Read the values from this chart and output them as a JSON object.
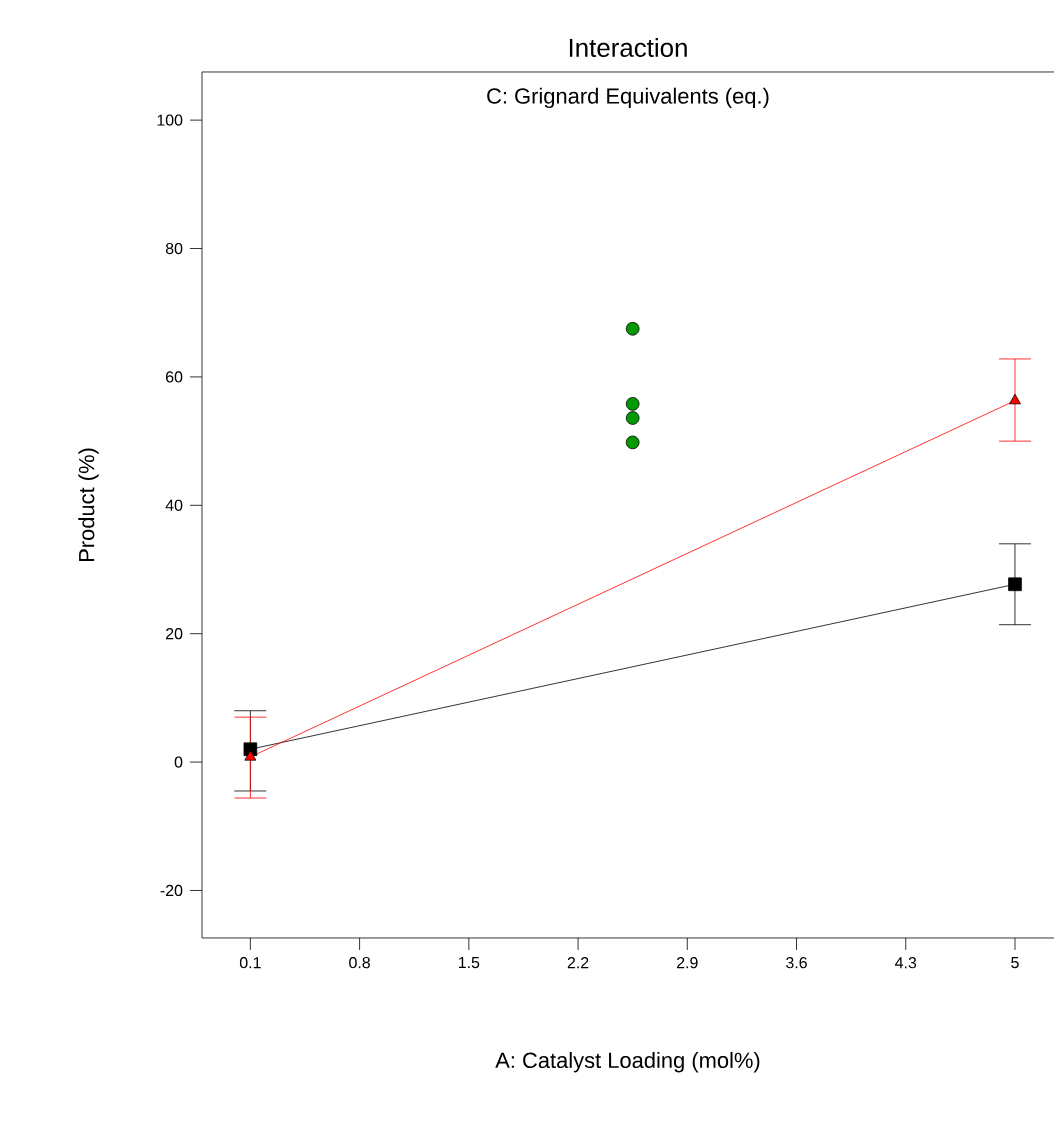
{
  "chart_data": {
    "type": "line",
    "title": "Interaction",
    "subtitle": "C: Grignard Equivalents (eq.)",
    "xlabel": "A: Catalyst Loading (mol%)",
    "ylabel": "Product (%)",
    "xlim": [
      -0.21,
      5.25
    ],
    "ylim": [
      -27.4,
      107.5
    ],
    "xticks": [
      0.1,
      0.8,
      1.5,
      2.2,
      2.9,
      3.6,
      4.3,
      5
    ],
    "yticks": [
      -20,
      0,
      20,
      40,
      60,
      80,
      100
    ],
    "grid": false,
    "series": [
      {
        "type": "scatter",
        "marker": "circle",
        "color": "#009900",
        "x": [
          2.55,
          2.55,
          2.55,
          2.55
        ],
        "values": [
          67.5,
          55.8,
          53.6,
          49.8
        ]
      },
      {
        "marker": "square",
        "color": "#000000",
        "x": [
          0.1,
          5
        ],
        "values": [
          2,
          27.7
        ],
        "errors": [
          [
            -4.5,
            8
          ],
          [
            21.4,
            34
          ]
        ]
      },
      {
        "marker": "triangle",
        "color": "#ff0000",
        "x": [
          0.1,
          5
        ],
        "values": [
          0.8,
          56.3
        ],
        "errors": [
          [
            -5.6,
            7
          ],
          [
            50,
            62.8
          ]
        ]
      }
    ]
  }
}
